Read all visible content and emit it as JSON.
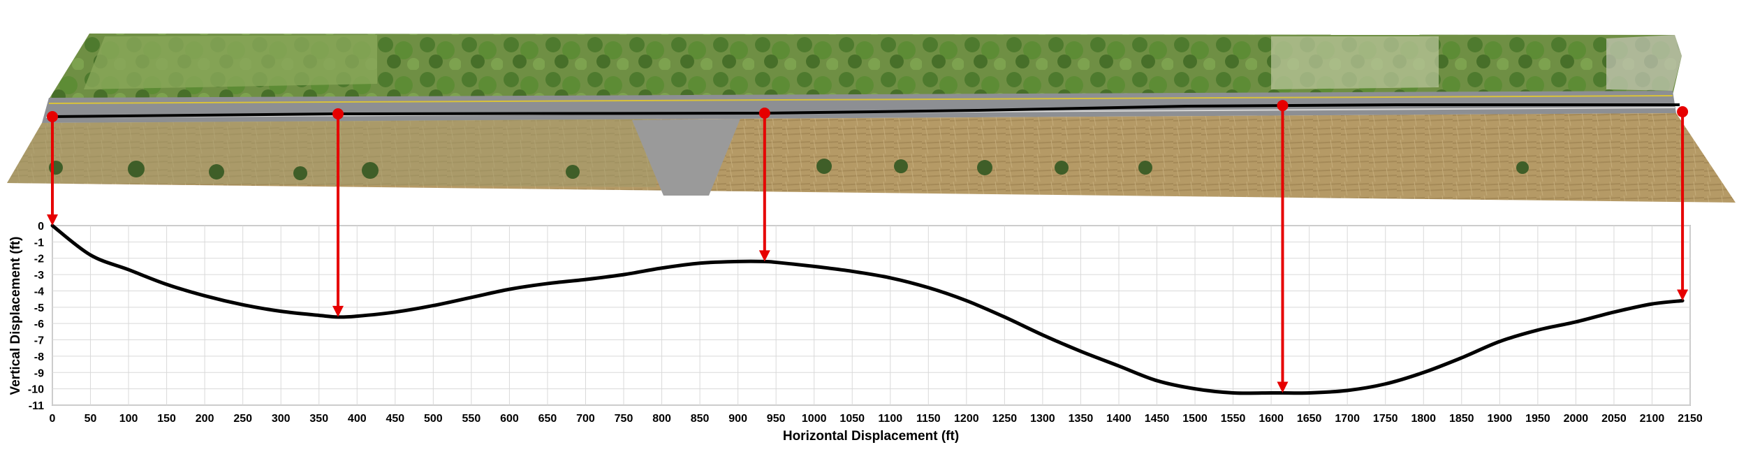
{
  "chart_data": {
    "type": "line",
    "xlabel": "Horizontal Displacement (ft)",
    "ylabel": "Vertical Displacement (ft)",
    "xlim": [
      0,
      2150
    ],
    "ylim": [
      -11,
      0
    ],
    "x_ticks": [
      0,
      50,
      100,
      150,
      200,
      250,
      300,
      350,
      400,
      450,
      500,
      550,
      600,
      650,
      700,
      750,
      800,
      850,
      900,
      950,
      1000,
      1050,
      1100,
      1150,
      1200,
      1250,
      1300,
      1350,
      1400,
      1450,
      1500,
      1550,
      1600,
      1650,
      1700,
      1750,
      1800,
      1850,
      1900,
      1950,
      2000,
      2050,
      2100,
      2150
    ],
    "y_ticks": [
      0,
      -1,
      -2,
      -3,
      -4,
      -5,
      -6,
      -7,
      -8,
      -9,
      -10,
      -11
    ],
    "grid": true,
    "series": [
      {
        "x": [
          0,
          50,
          100,
          150,
          200,
          250,
          300,
          350,
          375,
          400,
          450,
          500,
          550,
          600,
          650,
          700,
          750,
          800,
          850,
          900,
          935,
          950,
          1000,
          1050,
          1100,
          1150,
          1200,
          1250,
          1300,
          1350,
          1400,
          1450,
          1500,
          1550,
          1600,
          1615,
          1650,
          1700,
          1750,
          1800,
          1850,
          1900,
          1950,
          2000,
          2050,
          2100,
          2140
        ],
        "y": [
          0,
          -1.8,
          -2.7,
          -3.6,
          -4.3,
          -4.85,
          -5.25,
          -5.5,
          -5.6,
          -5.55,
          -5.3,
          -4.9,
          -4.4,
          -3.9,
          -3.55,
          -3.3,
          -3.0,
          -2.6,
          -2.3,
          -2.2,
          -2.2,
          -2.25,
          -2.5,
          -2.8,
          -3.2,
          -3.8,
          -4.6,
          -5.6,
          -6.7,
          -7.7,
          -8.6,
          -9.5,
          -10.0,
          -10.25,
          -10.25,
          -10.25,
          -10.25,
          -10.1,
          -9.7,
          -9.0,
          -8.1,
          -7.1,
          -6.4,
          -5.9,
          -5.3,
          -4.8,
          -4.6
        ]
      }
    ],
    "markers": [
      {
        "x": 0,
        "y": 0
      },
      {
        "x": 375,
        "y": -5.6
      },
      {
        "x": 935,
        "y": -2.2
      },
      {
        "x": 1615,
        "y": -10.25
      },
      {
        "x": 2140,
        "y": -4.6
      }
    ],
    "colors": {
      "line": "#000000",
      "marker": "#e60000",
      "grid": "#d9d9d9"
    }
  },
  "aerial_image": {
    "icon": "aerial-road-photo"
  }
}
